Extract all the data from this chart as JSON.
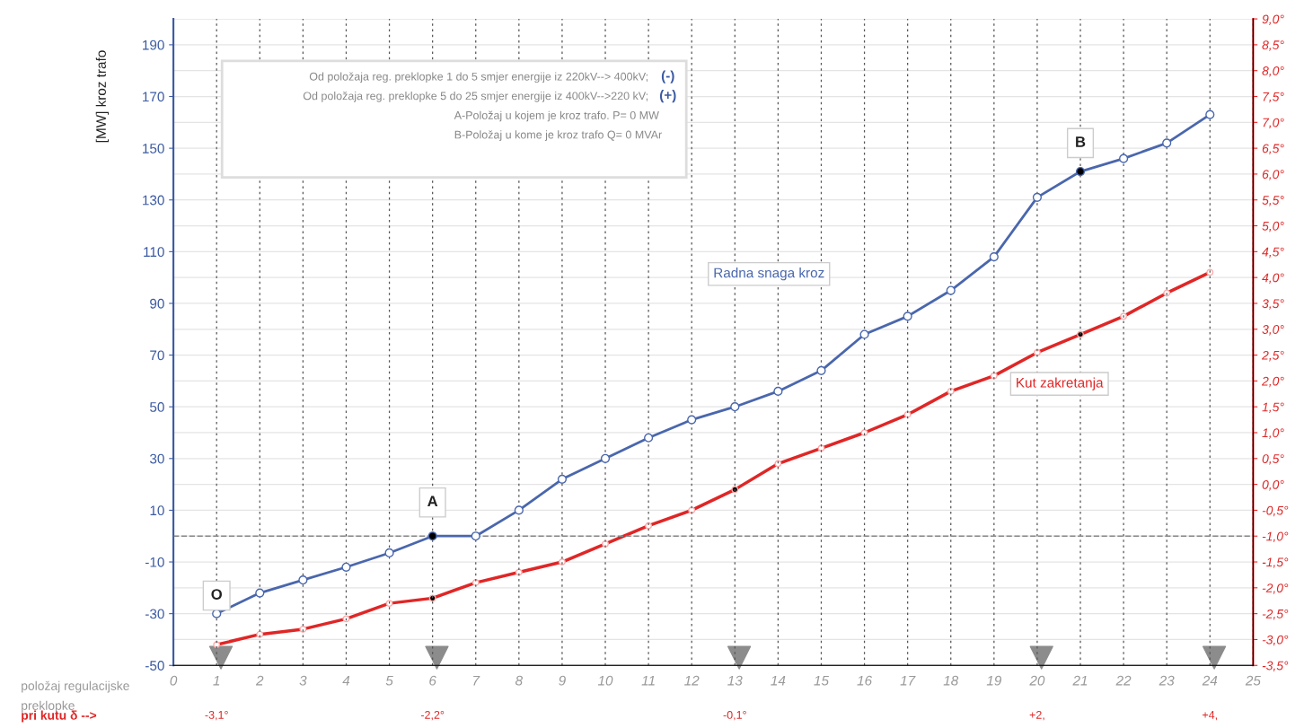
{
  "chart_data": {
    "type": "line",
    "ylabel": "[MW] kroz trafo",
    "xlabel": "položaj regulacijske\npreklopke",
    "xlim": [
      0,
      25
    ],
    "xticks": [
      0,
      1,
      2,
      3,
      4,
      5,
      6,
      7,
      8,
      9,
      10,
      11,
      12,
      13,
      14,
      15,
      16,
      17,
      18,
      19,
      20,
      21,
      22,
      23,
      24,
      25
    ],
    "ylim": [
      -50,
      200
    ],
    "yticks": [
      -50,
      -30,
      -10,
      10,
      30,
      50,
      70,
      90,
      110,
      130,
      150,
      170,
      190
    ],
    "y2lim": [
      -3.5,
      9.0
    ],
    "y2ticks": [
      {
        "value": -3.5,
        "label": "-3,5°"
      },
      {
        "value": -3.0,
        "label": "-3,0°"
      },
      {
        "value": -2.5,
        "label": "-2,5°"
      },
      {
        "value": -2.0,
        "label": "-2,0°"
      },
      {
        "value": -1.5,
        "label": "-1,5°"
      },
      {
        "value": -1.0,
        "label": "-1,0°"
      },
      {
        "value": -0.5,
        "label": "-0,5°"
      },
      {
        "value": 0.0,
        "label": "0,0°"
      },
      {
        "value": 0.5,
        "label": "0,5°"
      },
      {
        "value": 1.0,
        "label": "1,0°"
      },
      {
        "value": 1.5,
        "label": "1,5°"
      },
      {
        "value": 2.0,
        "label": "2,0°"
      },
      {
        "value": 2.5,
        "label": "2,5°"
      },
      {
        "value": 3.0,
        "label": "3,0°"
      },
      {
        "value": 3.5,
        "label": "3,5°"
      },
      {
        "value": 4.0,
        "label": "4,0°"
      },
      {
        "value": 4.5,
        "label": "4,5°"
      },
      {
        "value": 5.0,
        "label": "5,0°"
      },
      {
        "value": 5.5,
        "label": "5,5°"
      },
      {
        "value": 6.0,
        "label": "6,0°"
      },
      {
        "value": 6.5,
        "label": "6,5°"
      },
      {
        "value": 7.0,
        "label": "7,0°"
      },
      {
        "value": 7.5,
        "label": "7,5°"
      },
      {
        "value": 8.0,
        "label": "8,0°"
      },
      {
        "value": 8.5,
        "label": "8,5°"
      },
      {
        "value": 9.0,
        "label": "9,0°"
      }
    ],
    "x": [
      1,
      2,
      3,
      4,
      5,
      6,
      7,
      8,
      9,
      10,
      11,
      12,
      13,
      14,
      15,
      16,
      17,
      18,
      19,
      20,
      21,
      22,
      23,
      24
    ],
    "series": [
      {
        "name": "Radna snaga kroz",
        "color": "#4a67ad",
        "axis": "y",
        "values": [
          -30,
          -22,
          -17,
          -12,
          -6.5,
          0,
          0,
          10,
          22,
          30,
          38,
          45,
          50,
          56,
          64,
          78,
          85,
          95,
          108,
          131,
          141,
          146,
          152,
          163
        ],
        "colors": [
          "#ffffff",
          "#ffffff",
          "#ffffff",
          "#ffffff",
          "#ffffff",
          "#000000",
          "#ffffff",
          "#ffffff",
          "#ffffff",
          "#ffffff",
          "#ffffff",
          "#ffffff",
          "#ffffff",
          "#ffffff",
          "#ffffff",
          "#ffffff",
          "#ffffff",
          "#ffffff",
          "#ffffff",
          "#ffffff",
          "#000000",
          "#ffffff",
          "#ffffff",
          "#ffffff"
        ]
      },
      {
        "name": "Kut zakretanja",
        "color": "#e02626",
        "axis": "y2",
        "values": [
          -3.1,
          -2.9,
          -2.8,
          -2.6,
          -2.3,
          -2.2,
          -1.9,
          -1.7,
          -1.5,
          -1.15,
          -0.8,
          -0.5,
          -0.1,
          0.4,
          0.7,
          1.0,
          1.35,
          1.8,
          2.1,
          2.55,
          2.9,
          3.25,
          3.7,
          4.1
        ],
        "colors": [
          "#ffffff",
          "#ffffff",
          "#ffffff",
          "#ffffff",
          "#ffffff",
          "#000000",
          "#ffffff",
          "#ffffff",
          "#ffffff",
          "#ffffff",
          "#ffffff",
          "#ffffff",
          "#000000",
          "#ffffff",
          "#ffffff",
          "#ffffff",
          "#ffffff",
          "#ffffff",
          "#ffffff",
          "#ffffff",
          "#000000",
          "#ffffff",
          "#ffffff",
          "#ffffff"
        ]
      }
    ],
    "marker": "circle",
    "line_style": "solid",
    "grid": true,
    "legend": false,
    "ref_lines": [
      {
        "axis": "y",
        "value": 0,
        "color": "#888888",
        "line_style": "dashed"
      }
    ],
    "annotations": [
      "Od položaja reg. preklopke 1 do 5 smjer energije iz 220kV--> 400kV;",
      "Od položaja reg. preklopke 5 do 25 smjer energije iz 400kV-->220 kV;",
      "A-Položaj u kojem je kroz trafo. P= 0 MW",
      "B-Položaj u kome je kroz trafo Q= 0 MVAr",
      "(-)",
      "(+)",
      "pri kutu δ -->",
      {
        "text": "O",
        "x": 1,
        "y": -23
      },
      {
        "text": "A",
        "x": 6,
        "y": 13
      },
      {
        "text": "B",
        "x": 21,
        "y": 152
      },
      "-3,1°",
      "-2,2°",
      "-0,1°",
      "+2,",
      "+4,"
    ]
  }
}
